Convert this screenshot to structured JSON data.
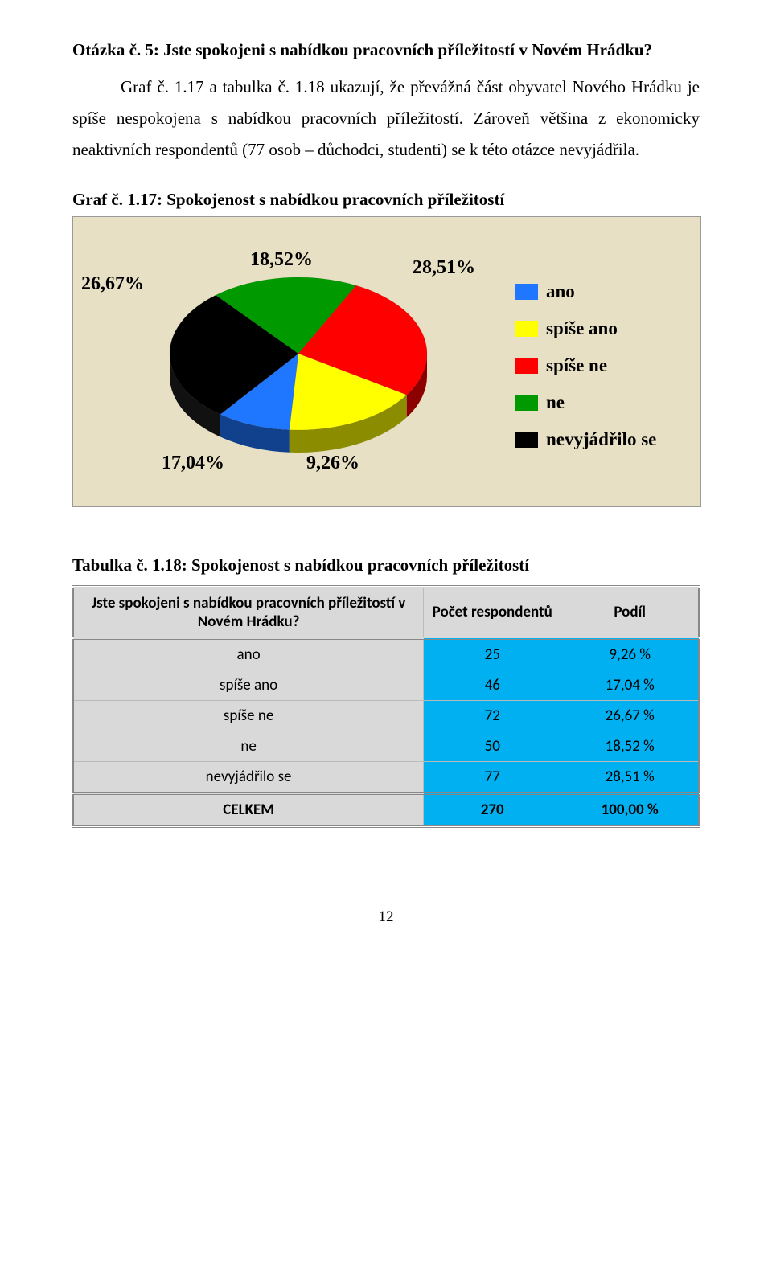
{
  "heading": "Otázka č. 5: Jste spokojeni s nabídkou pracovních příležitostí v Novém Hrádku?",
  "body": "Graf č. 1.17 a tabulka č. 1.18 ukazují, že převážná část obyvatel Nového Hrádku je spíše nespokojena s nabídkou pracovních příležitostí. Zároveň většina z ekonomicky neaktivních respondentů (77 osob – důchodci, studenti) se k této otázce nevyjádřila.",
  "chart": {
    "title": "Graf č. 1.17: Spokojenost s nabídkou pracovních příležitostí",
    "type": "pie",
    "background_color": "#e7e0c4",
    "slices": [
      {
        "label": "ano",
        "value": 9.26,
        "color": "#1f77ff",
        "legend": "ano"
      },
      {
        "label": "spíše ano",
        "value": 17.04,
        "color": "#ffff00",
        "legend": "spíše ano"
      },
      {
        "label": "spíše ne",
        "value": 26.67,
        "color": "#ff0000",
        "legend": "spíše ne"
      },
      {
        "label": "ne",
        "value": 18.52,
        "color": "#009900",
        "legend": "ne"
      },
      {
        "label": "nevyjádřilo se",
        "value": 28.51,
        "color": "#000000",
        "legend": "nevyjádřilo se"
      }
    ],
    "labels": {
      "top_left": "26,67%",
      "top_mid": "18,52%",
      "top_right": "28,51%",
      "bottom_left": "17,04%",
      "bottom_right": "9,26%"
    }
  },
  "table": {
    "title": "Tabulka č. 1.18: Spokojenost s nabídkou pracovních příležitostí",
    "columns": [
      "Jste spokojeni s nabídkou pracovních příležitostí v Novém Hrádku?",
      "Počet respondentů",
      "Podíl"
    ],
    "rows": [
      {
        "label": "ano",
        "count": "25",
        "pct": "9,26 %"
      },
      {
        "label": "spíše ano",
        "count": "46",
        "pct": "17,04 %"
      },
      {
        "label": "spíše ne",
        "count": "72",
        "pct": "26,67 %"
      },
      {
        "label": "ne",
        "count": "50",
        "pct": "18,52 %"
      },
      {
        "label": "nevyjádřilo se",
        "count": "77",
        "pct": "28,51 %"
      }
    ],
    "total": {
      "label": "CELKEM",
      "count": "270",
      "pct": "100,00 %"
    }
  },
  "page_number": "12"
}
